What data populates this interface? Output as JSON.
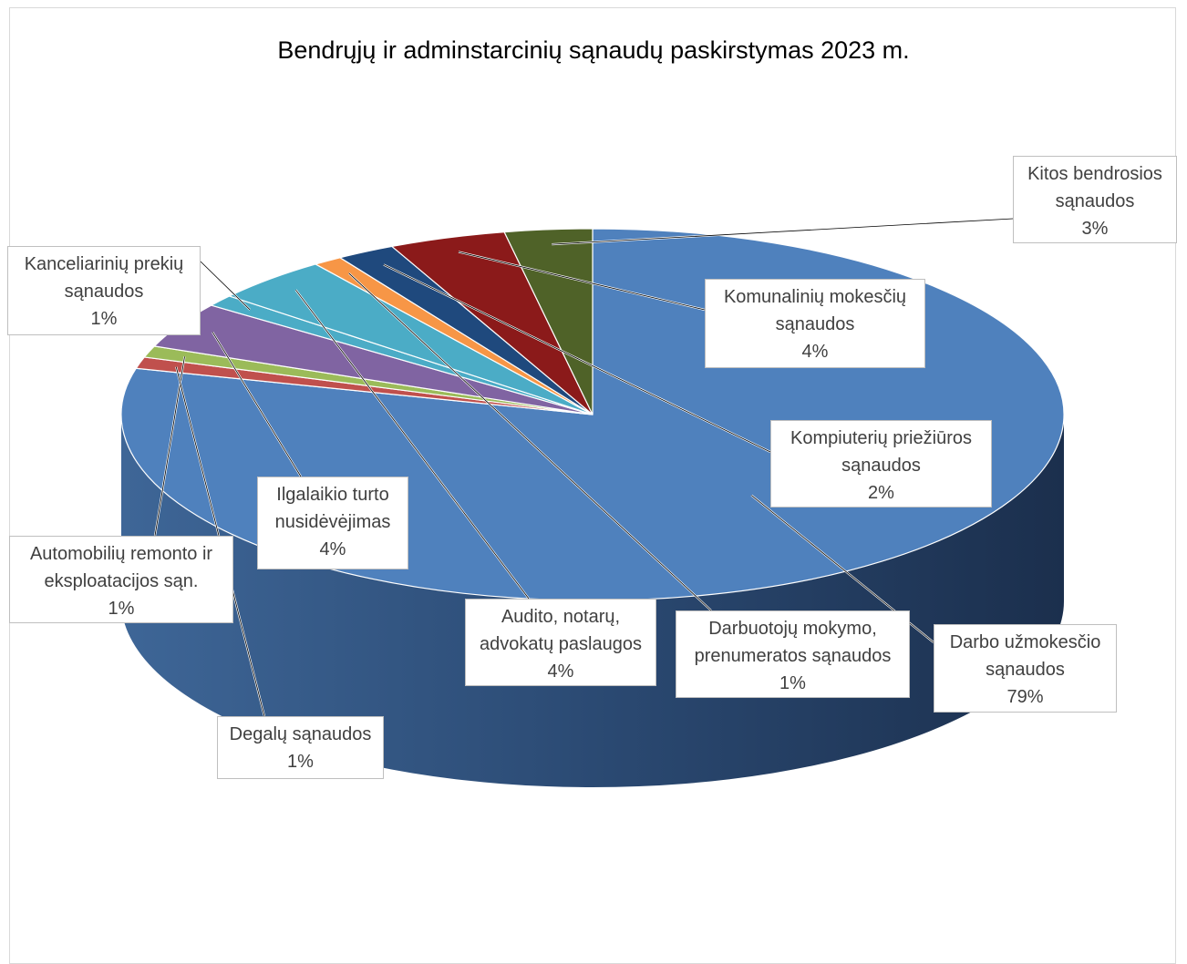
{
  "chart_data": {
    "type": "pie",
    "title": "Bendrųjų ir adminstarcinių sąnaudų paskirstymas 2023 m.",
    "slices": [
      {
        "name": "Darbo užmokesčio sąnaudos",
        "value": 79,
        "label": "79%",
        "color": "#4f81bd"
      },
      {
        "name": "Degalų sąnaudos",
        "value": 1,
        "label": "1%",
        "color": "#c0504d"
      },
      {
        "name": "Automobilių remonto ir eksploatacijos sąn.",
        "value": 1,
        "label": "1%",
        "color": "#9bbb59"
      },
      {
        "name": "Ilgalaikio turto nusidėvėjimas",
        "value": 4,
        "label": "4%",
        "color": "#8064a2"
      },
      {
        "name": "Kanceliarinių prekių sąnaudos",
        "value": 1,
        "label": "1%",
        "color": "#4bacc6"
      },
      {
        "name": "Audito, notarų, advokatų paslaugos",
        "value": 4,
        "label": "4%",
        "color": "#4bacc6"
      },
      {
        "name": "Darbuotojų mokymo, prenumeratos sąnaudos",
        "value": 1,
        "label": "1%",
        "color": "#f79646"
      },
      {
        "name": "Kompiuterių priežiūros sąnaudos",
        "value": 2,
        "label": "2%",
        "color": "#1f497d"
      },
      {
        "name": "Komunalinių mokesčių sąnaudos",
        "value": 4,
        "label": "4%",
        "color": "#8b1a1a"
      },
      {
        "name": "Kitos bendrosios sąnaudos",
        "value": 3,
        "label": "3%",
        "color": "#4f6228"
      }
    ]
  },
  "labels": [
    {
      "text": "Kitos bendrosios\nsąnaudos\n3%"
    },
    {
      "text": "Kanceliarinių prekių\nsąnaudos\n1%"
    },
    {
      "text": "Komunalinių mokesčių\nsąnaudos\n4%"
    },
    {
      "text": "Kompiuterių priežiūros\nsąnaudos\n2%"
    },
    {
      "text": "Ilgalaikio  turto\nnusidėvėjimas\n4%"
    },
    {
      "text": "Automobilių remonto ir\neksploatacijos sąn.\n1%"
    },
    {
      "text": "Audito, notarų,\nadvokatų paslaugos\n4%"
    },
    {
      "text": "Darbuotojų mokymo,\nprenumeratos sąnaudos\n1%"
    },
    {
      "text": "Darbo užmokesčio\nsąnaudos\n79%"
    },
    {
      "text": "Degalų sąnaudos\n1%"
    }
  ]
}
